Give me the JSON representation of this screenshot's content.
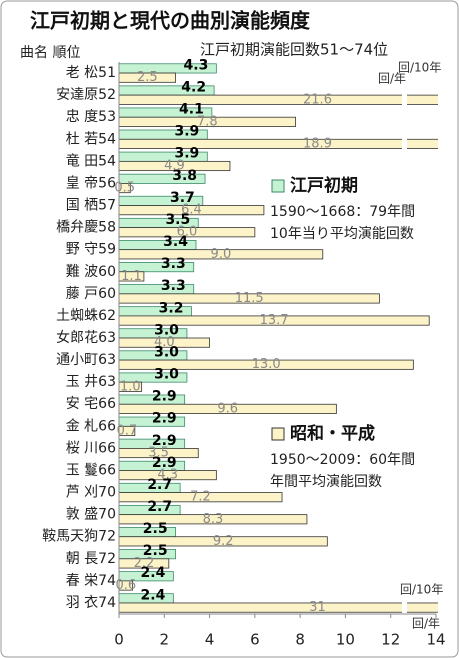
{
  "chart_data": {
    "type": "bar",
    "orientation": "horizontal",
    "title": "江戸初期と現代の曲別演能頻度",
    "subtitle": "江戸初期演能回数51～74位",
    "category_header": "曲名 順位",
    "categories": [
      "老 松51",
      "安達原52",
      "忠 度53",
      "杜 若54",
      "竜 田54",
      "皇 帝56",
      "国 栖57",
      "橋弁慶58",
      "野 守59",
      "難 波60",
      "藤 戸60",
      "土蜘蛛62",
      "女郎花63",
      "通小町63",
      "玉 井63",
      "安 宅66",
      "金 札66",
      "桜 川66",
      "玉 鬘66",
      "芦 刈70",
      "敦 盛70",
      "鞍馬天狗72",
      "朝 長72",
      "春 栄74",
      "羽 衣74"
    ],
    "series": [
      {
        "name": "江戸初期",
        "notes": [
          "1590～1668：79年間",
          "10年当り平均演能回数"
        ],
        "color": "#c6f2d4",
        "edge": "#3a8a6a",
        "values": [
          4.3,
          4.2,
          4.1,
          3.9,
          3.9,
          3.8,
          3.7,
          3.5,
          3.4,
          3.3,
          3.3,
          3.2,
          3.0,
          3.0,
          3.0,
          2.9,
          2.9,
          2.9,
          2.9,
          2.7,
          2.7,
          2.5,
          2.5,
          2.4,
          2.4
        ],
        "value_labels": [
          "4.3",
          "4.2",
          "4.1",
          "3.9",
          "3.9",
          "3.8",
          "3.7",
          "3.5",
          "3.4",
          "3.3",
          "3.3",
          "3.2",
          "3.0",
          "3.0",
          "3.0",
          "2.9",
          "2.9",
          "2.9",
          "2.9",
          "2.7",
          "2.7",
          "2.5",
          "2.5",
          "2.4",
          "2.4"
        ]
      },
      {
        "name": "昭和・平成",
        "notes": [
          "1950～2009：60年間",
          "年間平均演能回数"
        ],
        "color": "#fdf3c8",
        "edge": "#333333",
        "values": [
          2.5,
          21.6,
          7.8,
          18.9,
          4.9,
          0.5,
          6.4,
          6.0,
          9.0,
          1.1,
          11.5,
          13.7,
          4.0,
          13.0,
          1.0,
          9.6,
          0.7,
          3.5,
          4.3,
          7.2,
          8.3,
          9.2,
          2.2,
          0.6,
          31
        ],
        "value_labels": [
          "2.5",
          "21.6",
          "7.8",
          "18.9",
          "4.9",
          "0.5",
          "6.4",
          "6.0",
          "9.0",
          "1.1",
          "11.5",
          "13.7",
          "4.0",
          "13.0",
          "1.0",
          "9.6",
          "0.7",
          "3.5",
          "4.3",
          "7.2",
          "8.3",
          "9.2",
          "2.2",
          "0.6",
          "31"
        ]
      }
    ],
    "annotations": [
      "回/10年",
      "回/年",
      "回/10年",
      "回/年"
    ],
    "xlim": [
      0,
      14
    ],
    "xticks": [
      0,
      2,
      4,
      6,
      8,
      10,
      12,
      14
    ],
    "grid": false
  }
}
